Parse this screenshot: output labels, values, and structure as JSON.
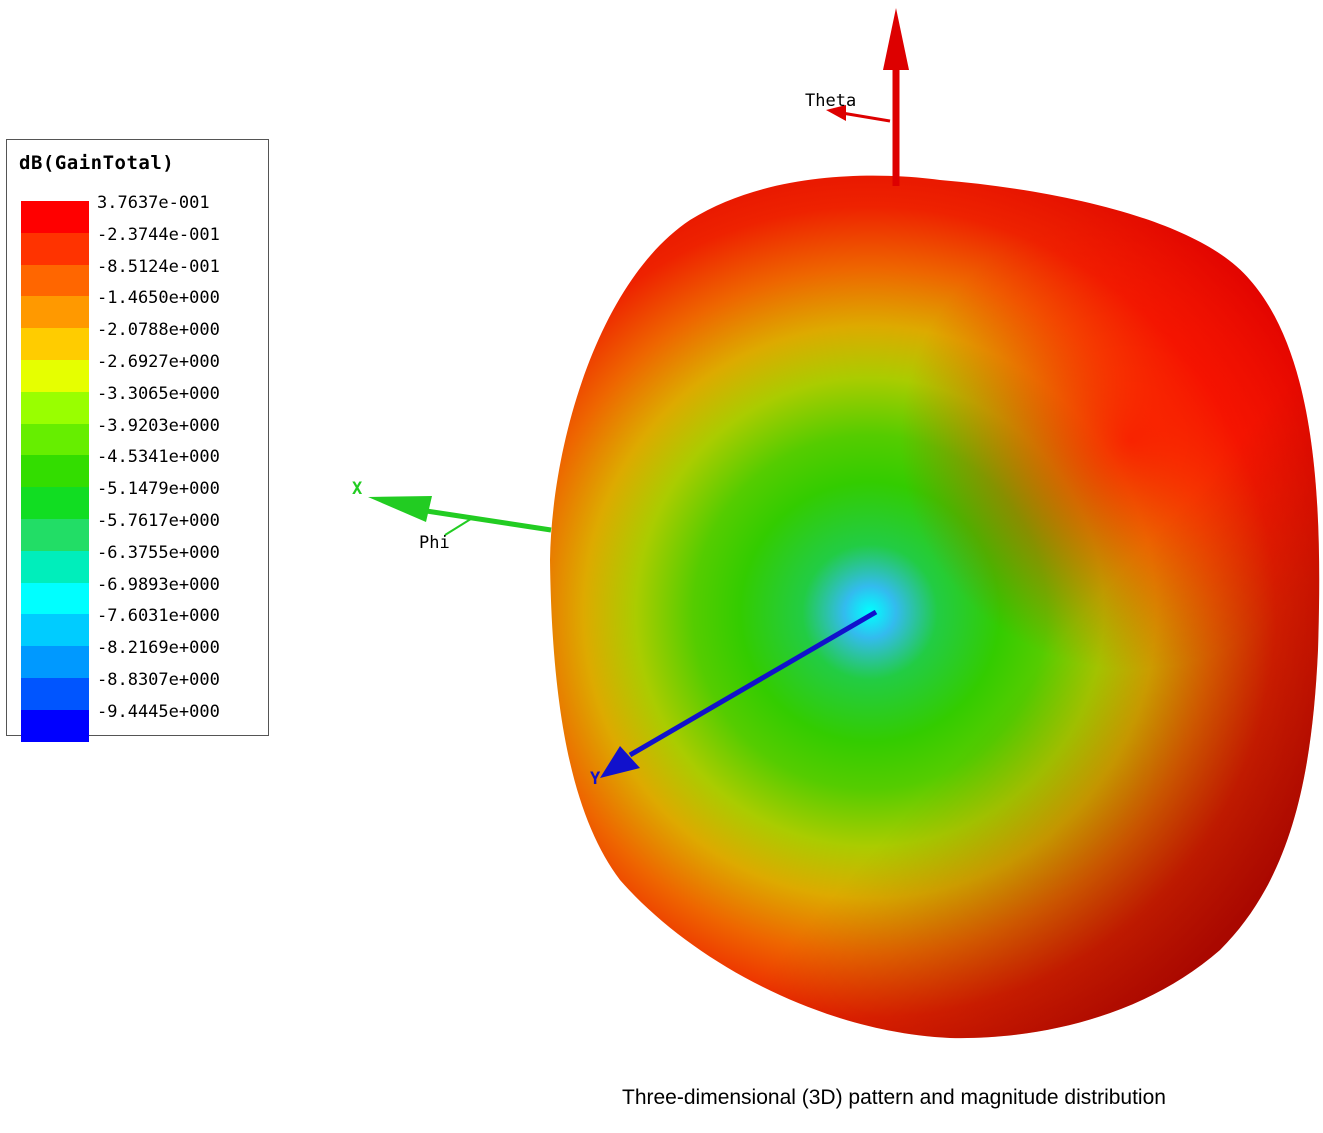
{
  "legend": {
    "title": "dB(GainTotal)",
    "ticks": [
      {
        "label": "3.7637e-001",
        "color": "#ff0000"
      },
      {
        "label": "-2.3744e-001",
        "color": "#ff3300"
      },
      {
        "label": "-8.5124e-001",
        "color": "#ff6600"
      },
      {
        "label": "-1.4650e+000",
        "color": "#ff9900"
      },
      {
        "label": "-2.0788e+000",
        "color": "#ffcc00"
      },
      {
        "label": "-2.6927e+000",
        "color": "#e6ff00"
      },
      {
        "label": "-3.3065e+000",
        "color": "#99ff00"
      },
      {
        "label": "-3.9203e+000",
        "color": "#66ee00"
      },
      {
        "label": "-4.5341e+000",
        "color": "#33dd00"
      },
      {
        "label": "-5.1479e+000",
        "color": "#11dd22"
      },
      {
        "label": "-5.7617e+000",
        "color": "#22dd66"
      },
      {
        "label": "-6.3755e+000",
        "color": "#00eebb"
      },
      {
        "label": "-6.9893e+000",
        "color": "#00ffff"
      },
      {
        "label": "-7.6031e+000",
        "color": "#00ccff"
      },
      {
        "label": "-8.2169e+000",
        "color": "#0099ff"
      },
      {
        "label": "-8.8307e+000",
        "color": "#0055ff"
      },
      {
        "label": "-9.4445e+000",
        "color": "#0000ff"
      }
    ]
  },
  "axes": {
    "theta_label": "Theta",
    "phi_label": "Phi",
    "x_label": "X",
    "y_label": "Y",
    "z_color": "#dd0000",
    "x_color": "#22cc22",
    "y_color": "#1111cc"
  },
  "caption": "Three-dimensional (3D) pattern and magnitude distribution"
}
